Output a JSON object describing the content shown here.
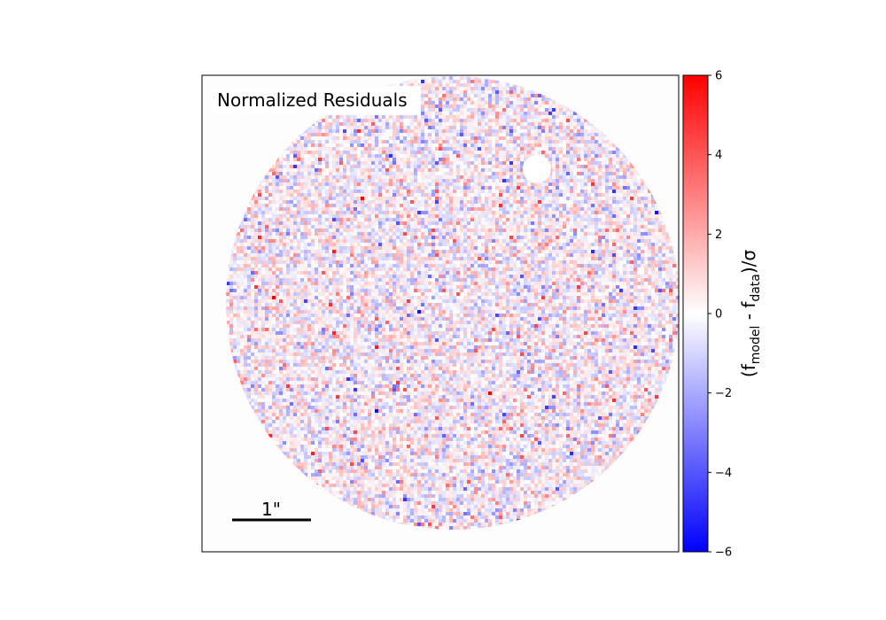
{
  "chart_data": {
    "type": "heatmap",
    "title": "Normalized Residuals",
    "colorbar": {
      "label_main": "(f",
      "label_sub1": "model",
      "label_mid": " - f",
      "label_sub2": "data",
      "label_end": ")/σ",
      "range": [
        -6,
        6
      ],
      "ticks": [
        6,
        4,
        2,
        0,
        -2,
        -4,
        -6
      ],
      "tick_labels": [
        "6",
        "4",
        "2",
        "0",
        "−2",
        "−4",
        "−6"
      ],
      "cmap": [
        "#0000ff",
        "#ffffff",
        "#ff0000"
      ]
    },
    "scale_bar_label": "1\"",
    "masked_circle": true,
    "grid": false
  }
}
